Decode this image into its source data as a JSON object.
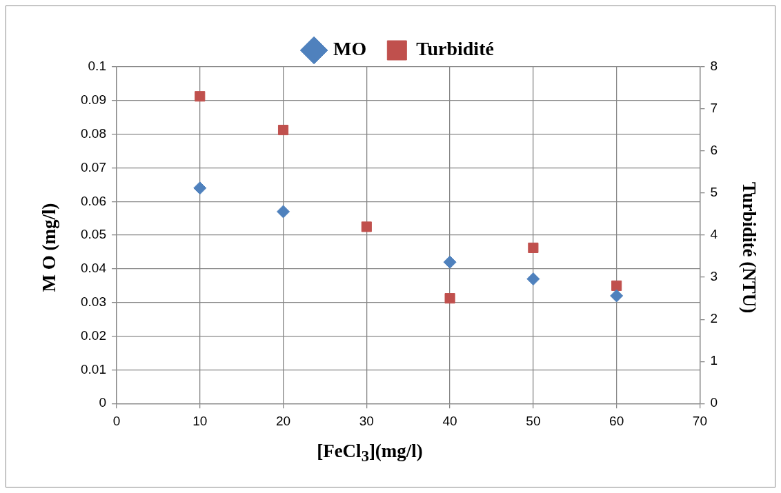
{
  "chart_data": {
    "type": "scatter",
    "xlabel": "[FeCl$_{3}$](mg/l)",
    "ylabel": "M O (mg/l)",
    "y2label": "Turbidité (NTU)",
    "x": [
      10,
      20,
      30,
      40,
      50,
      60
    ],
    "series": [
      {
        "name": "MO",
        "color": "#4f81bd",
        "marker": "diamond",
        "values": [
          0.064,
          0.057,
          null,
          0.042,
          0.037,
          0.032
        ]
      },
      {
        "name": "Turbidité",
        "color": "#c0504d",
        "marker": "square",
        "axis": "y2",
        "values": [
          7.3,
          6.5,
          4.2,
          2.5,
          3.7,
          2.8
        ]
      }
    ],
    "xlim": [
      0,
      70
    ],
    "xticks": [
      0,
      10,
      20,
      30,
      40,
      50,
      60,
      70
    ],
    "ylim": [
      0,
      0.1
    ],
    "yticks": [
      0,
      0.01,
      0.02,
      0.03,
      0.04,
      0.05,
      0.06,
      0.07,
      0.08,
      0.09,
      0.1
    ],
    "y2lim": [
      0,
      8
    ],
    "y2ticks": [
      0,
      1,
      2,
      3,
      4,
      5,
      6,
      7,
      8
    ],
    "grid": true,
    "legend": "top"
  }
}
